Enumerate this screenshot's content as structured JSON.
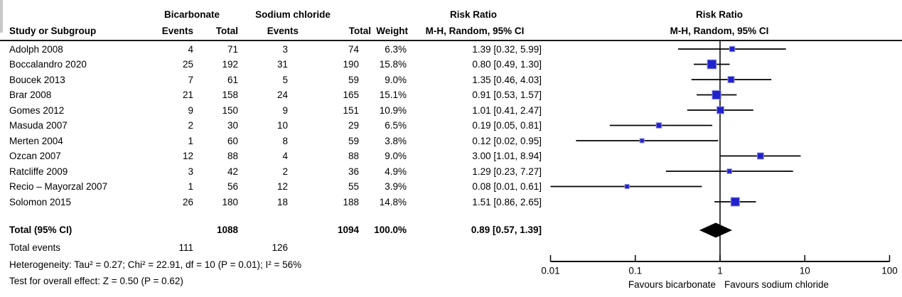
{
  "header": {
    "group1": "Bicarbonate",
    "group2": "Sodium chloride",
    "col_study": "Study or Subgroup",
    "col_events": "Events",
    "col_total": "Total",
    "col_weight": "Weight",
    "risk_ratio": "Risk Ratio",
    "method": "M-H, Random, 95% CI"
  },
  "rows": [
    {
      "study": "Adolph 2008",
      "e1": "4",
      "t1": "71",
      "e2": "3",
      "t2": "74",
      "weight": "6.3%",
      "ci_text": "1.39 [0.32, 5.99]"
    },
    {
      "study": "Boccalandro 2020",
      "e1": "25",
      "t1": "192",
      "e2": "31",
      "t2": "190",
      "weight": "15.8%",
      "ci_text": "0.80 [0.49, 1.30]"
    },
    {
      "study": "Boucek 2013",
      "e1": "7",
      "t1": "61",
      "e2": "5",
      "t2": "59",
      "weight": "9.0%",
      "ci_text": "1.35 [0.46, 4.03]"
    },
    {
      "study": "Brar 2008",
      "e1": "21",
      "t1": "158",
      "e2": "24",
      "t2": "165",
      "weight": "15.1%",
      "ci_text": "0.91 [0.53, 1.57]"
    },
    {
      "study": "Gomes 2012",
      "e1": "9",
      "t1": "150",
      "e2": "9",
      "t2": "151",
      "weight": "10.9%",
      "ci_text": "1.01 [0.41, 2.47]"
    },
    {
      "study": "Masuda 2007",
      "e1": "2",
      "t1": "30",
      "e2": "10",
      "t2": "29",
      "weight": "6.5%",
      "ci_text": "0.19 [0.05, 0.81]"
    },
    {
      "study": "Merten 2004",
      "e1": "1",
      "t1": "60",
      "e2": "8",
      "t2": "59",
      "weight": "3.8%",
      "ci_text": "0.12 [0.02, 0.95]"
    },
    {
      "study": "Ozcan 2007",
      "e1": "12",
      "t1": "88",
      "e2": "4",
      "t2": "88",
      "weight": "9.0%",
      "ci_text": "3.00 [1.01, 8.94]"
    },
    {
      "study": "Ratcliffe 2009",
      "e1": "3",
      "t1": "42",
      "e2": "2",
      "t2": "36",
      "weight": "4.9%",
      "ci_text": "1.29 [0.23, 7.27]"
    },
    {
      "study": "Recio – Mayorzal 2007",
      "e1": "1",
      "t1": "56",
      "e2": "12",
      "t2": "55",
      "weight": "3.9%",
      "ci_text": "0.08 [0.01, 0.61]"
    },
    {
      "study": "Solomon 2015",
      "e1": "26",
      "t1": "180",
      "e2": "18",
      "t2": "188",
      "weight": "14.8%",
      "ci_text": "1.51 [0.86, 2.65]"
    }
  ],
  "totals": {
    "label": "Total (95% CI)",
    "t1": "1088",
    "t2": "1094",
    "weight": "100.0%",
    "ci_text": "0.89 [0.57, 1.39]"
  },
  "footer": {
    "total_events_label": "Total events",
    "total_events_1": "111",
    "total_events_2": "126",
    "heterogeneity": "Heterogeneity: Tau² = 0.27; Chi² = 22.91, df = 10 (P = 0.01); I² = 56%",
    "overall_effect": "Test for overall effect: Z = 0.50 (P = 0.62)"
  },
  "chart_data": {
    "type": "forest",
    "title": "Risk Ratio  M-H, Random, 95% CI",
    "x_scale": "log",
    "x_range": [
      0.01,
      100
    ],
    "x_ticks": [
      "0.01",
      "0.1",
      "1",
      "10",
      "100"
    ],
    "no_effect_line": 1,
    "favours_left": "Favours bicarbonate",
    "favours_right": "Favours sodium chloride",
    "marker_color": "#2222CC",
    "marker_edge_color": "#9494E0",
    "line_color": "#000000",
    "diamond_color": "#000000",
    "studies": [
      {
        "name": "Adolph 2008",
        "rr": 1.39,
        "lo": 0.32,
        "hi": 5.99,
        "weight": 6.3
      },
      {
        "name": "Boccalandro 2020",
        "rr": 0.8,
        "lo": 0.49,
        "hi": 1.3,
        "weight": 15.8
      },
      {
        "name": "Boucek 2013",
        "rr": 1.35,
        "lo": 0.46,
        "hi": 4.03,
        "weight": 9.0
      },
      {
        "name": "Brar 2008",
        "rr": 0.91,
        "lo": 0.53,
        "hi": 1.57,
        "weight": 15.1
      },
      {
        "name": "Gomes 2012",
        "rr": 1.01,
        "lo": 0.41,
        "hi": 2.47,
        "weight": 10.9
      },
      {
        "name": "Masuda 2007",
        "rr": 0.19,
        "lo": 0.05,
        "hi": 0.81,
        "weight": 6.5
      },
      {
        "name": "Merten 2004",
        "rr": 0.12,
        "lo": 0.02,
        "hi": 0.95,
        "weight": 3.8
      },
      {
        "name": "Ozcan 2007",
        "rr": 3.0,
        "lo": 1.01,
        "hi": 8.94,
        "weight": 9.0
      },
      {
        "name": "Ratcliffe 2009",
        "rr": 1.29,
        "lo": 0.23,
        "hi": 7.27,
        "weight": 4.9
      },
      {
        "name": "Recio – Mayorzal 2007",
        "rr": 0.08,
        "lo": 0.01,
        "hi": 0.61,
        "weight": 3.9
      },
      {
        "name": "Solomon 2015",
        "rr": 1.51,
        "lo": 0.86,
        "hi": 2.65,
        "weight": 14.8
      }
    ],
    "total": {
      "label": "Total (95% CI)",
      "rr": 0.89,
      "lo": 0.57,
      "hi": 1.39,
      "weight": 100.0
    }
  }
}
